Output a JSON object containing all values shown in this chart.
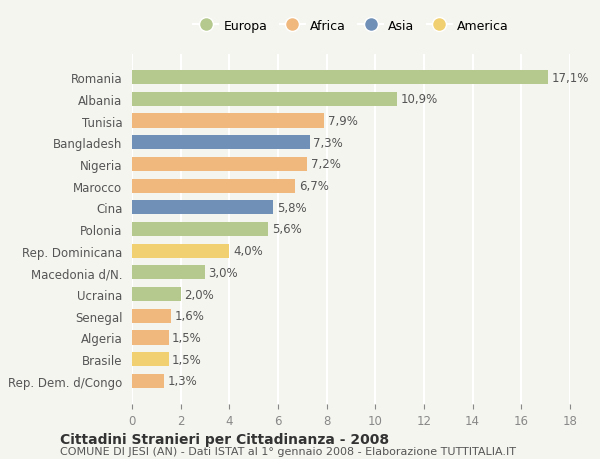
{
  "countries": [
    "Romania",
    "Albania",
    "Tunisia",
    "Bangladesh",
    "Nigeria",
    "Marocco",
    "Cina",
    "Polonia",
    "Rep. Dominicana",
    "Macedonia d/N.",
    "Ucraina",
    "Senegal",
    "Algeria",
    "Brasile",
    "Rep. Dem. d/Congo"
  ],
  "values": [
    17.1,
    10.9,
    7.9,
    7.3,
    7.2,
    6.7,
    5.8,
    5.6,
    4.0,
    3.0,
    2.0,
    1.6,
    1.5,
    1.5,
    1.3
  ],
  "labels": [
    "17,1%",
    "10,9%",
    "7,9%",
    "7,3%",
    "7,2%",
    "6,7%",
    "5,8%",
    "5,6%",
    "4,0%",
    "3,0%",
    "2,0%",
    "1,6%",
    "1,5%",
    "1,5%",
    "1,3%"
  ],
  "continents": [
    "Europa",
    "Europa",
    "Africa",
    "Asia",
    "Africa",
    "Africa",
    "Asia",
    "Europa",
    "America",
    "Europa",
    "Europa",
    "Africa",
    "Africa",
    "America",
    "Africa"
  ],
  "colors": {
    "Europa": "#b5c98e",
    "Africa": "#f0b87c",
    "Asia": "#7090b8",
    "America": "#f0d070"
  },
  "legend_order": [
    "Europa",
    "Africa",
    "Asia",
    "America"
  ],
  "xlim": [
    0,
    18
  ],
  "xticks": [
    0,
    2,
    4,
    6,
    8,
    10,
    12,
    14,
    16,
    18
  ],
  "title": "Cittadini Stranieri per Cittadinanza - 2008",
  "subtitle": "COMUNE DI JESI (AN) - Dati ISTAT al 1° gennaio 2008 - Elaborazione TUTTITALIA.IT",
  "background_color": "#f5f5f0",
  "grid_color": "#ffffff",
  "bar_height": 0.65,
  "label_fontsize": 8.5,
  "tick_label_fontsize": 8.5,
  "title_fontsize": 10,
  "subtitle_fontsize": 8
}
